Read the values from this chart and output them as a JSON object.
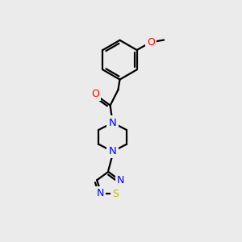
{
  "background_color": "#ebebeb",
  "bond_color": "#000000",
  "bond_lw": 1.6,
  "atom_colors": {
    "O": "#ff0000",
    "N": "#0000ff",
    "S": "#bbbb00",
    "C": "#000000"
  },
  "figsize": [
    3.0,
    3.0
  ],
  "dpi": 100,
  "xlim": [
    0,
    10
  ],
  "ylim": [
    0,
    10
  ]
}
